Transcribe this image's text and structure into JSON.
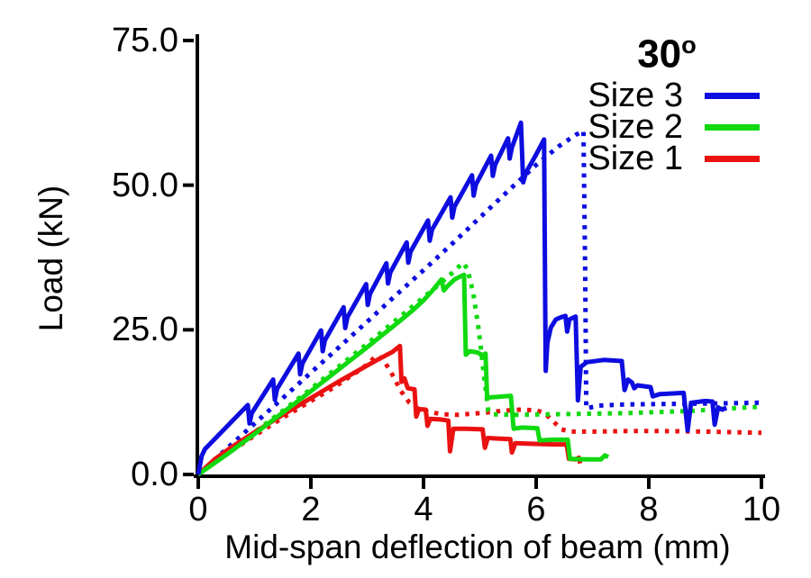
{
  "chart_data": {
    "type": "line",
    "title": "30",
    "title_sup": "o",
    "xlabel": "Mid-span deflection of beam (mm)",
    "ylabel": "Load (kN)",
    "xlim": [
      0,
      10
    ],
    "ylim": [
      0,
      75
    ],
    "grid": false,
    "legend_position": "upper-right",
    "xticks": [
      0,
      2,
      4,
      6,
      8,
      10
    ],
    "yticks": [
      0,
      25,
      50,
      75
    ],
    "xtick_labels": [
      "0",
      "2",
      "4",
      "6",
      "8",
      "10"
    ],
    "ytick_labels": [
      "0.0",
      "25.0",
      "50.0",
      "75.0"
    ],
    "axis_color": "#000000",
    "legend": {
      "items": [
        {
          "label": "Size 3",
          "color": "#0d0de0"
        },
        {
          "label": "Size 2",
          "color": "#10d910"
        },
        {
          "label": "Size 1",
          "color": "#ea1111"
        }
      ]
    },
    "series": [
      {
        "id": "size1-dotted",
        "name": "Size 1 (dotted)",
        "color": "#ea1111",
        "line": "dotted",
        "points": [
          [
            0,
            0
          ],
          [
            0.5,
            3.5
          ],
          [
            1,
            6.7
          ],
          [
            1.5,
            9.8
          ],
          [
            2,
            12.7
          ],
          [
            2.4,
            15
          ],
          [
            2.8,
            17.6
          ],
          [
            3,
            19
          ],
          [
            3.17,
            20.6
          ],
          [
            3.3,
            19.6
          ],
          [
            3.45,
            17.2
          ],
          [
            3.6,
            14.4
          ],
          [
            3.75,
            12.4
          ],
          [
            3.9,
            11.4
          ],
          [
            4.1,
            10.8
          ],
          [
            4.35,
            10.4
          ],
          [
            4.6,
            10.3
          ],
          [
            5,
            10.6
          ],
          [
            5.4,
            11
          ],
          [
            5.7,
            11.2
          ],
          [
            6,
            11.1
          ],
          [
            6.15,
            10.6
          ],
          [
            6.3,
            9.2
          ],
          [
            6.45,
            7.8
          ],
          [
            6.6,
            7.4
          ],
          [
            7,
            7.4
          ],
          [
            7.6,
            7.5
          ],
          [
            8.2,
            7.5
          ],
          [
            9,
            7.4
          ],
          [
            10,
            7.2
          ]
        ]
      },
      {
        "id": "size2-dotted",
        "name": "Size 2 (dotted)",
        "color": "#10d910",
        "line": "dotted",
        "points": [
          [
            0,
            0
          ],
          [
            0.5,
            3.6
          ],
          [
            1,
            7.3
          ],
          [
            1.5,
            11
          ],
          [
            2,
            14.8
          ],
          [
            2.5,
            18.7
          ],
          [
            3,
            22.6
          ],
          [
            3.5,
            26.6
          ],
          [
            4,
            30.6
          ],
          [
            4.3,
            33
          ],
          [
            4.55,
            35.2
          ],
          [
            4.7,
            36.6
          ],
          [
            4.78,
            35.5
          ],
          [
            4.88,
            31.5
          ],
          [
            4.98,
            25
          ],
          [
            5.08,
            16.5
          ],
          [
            5.15,
            11
          ],
          [
            5.22,
            10.4
          ],
          [
            5.6,
            10.3
          ],
          [
            6.2,
            10.4
          ],
          [
            7,
            10.5
          ],
          [
            7.6,
            10.6
          ],
          [
            8.2,
            10.8
          ],
          [
            8.8,
            11
          ],
          [
            9.4,
            11.4
          ],
          [
            10,
            11.7
          ]
        ]
      },
      {
        "id": "size3-dotted",
        "name": "Size 3 (dotted)",
        "color": "#0d0de0",
        "line": "dotted",
        "points": [
          [
            0,
            0
          ],
          [
            0.5,
            4.4
          ],
          [
            1,
            8.8
          ],
          [
            1.5,
            13.2
          ],
          [
            2,
            17.6
          ],
          [
            2.5,
            22
          ],
          [
            3,
            26.4
          ],
          [
            3.5,
            30.9
          ],
          [
            4,
            35.3
          ],
          [
            4.5,
            39.8
          ],
          [
            5,
            44.4
          ],
          [
            5.5,
            49
          ],
          [
            6,
            53.5
          ],
          [
            6.4,
            56.7
          ],
          [
            6.7,
            58.7
          ],
          [
            6.84,
            59.4
          ],
          [
            6.87,
            35
          ],
          [
            6.89,
            11.4
          ],
          [
            7.1,
            11.9
          ],
          [
            7.6,
            12.1
          ],
          [
            8.5,
            12.2
          ],
          [
            9.3,
            12.3
          ],
          [
            10,
            12.4
          ]
        ]
      },
      {
        "id": "size1-solid",
        "name": "Size 1",
        "color": "#ea1111",
        "line": "solid",
        "points": [
          [
            0,
            0
          ],
          [
            0.3,
            2.7
          ],
          [
            0.6,
            4.8
          ],
          [
            1,
            7.3
          ],
          [
            1.5,
            10.3
          ],
          [
            2,
            13.2
          ],
          [
            2.5,
            16.1
          ],
          [
            2.9,
            18.3
          ],
          [
            3.2,
            19.9
          ],
          [
            3.45,
            21.2
          ],
          [
            3.58,
            22.2
          ],
          [
            3.61,
            16
          ],
          [
            3.66,
            16.6
          ],
          [
            3.72,
            14.9
          ],
          [
            3.84,
            14.7
          ],
          [
            3.87,
            10
          ],
          [
            3.92,
            11.3
          ],
          [
            4.04,
            11.2
          ],
          [
            4.07,
            8.4
          ],
          [
            4.12,
            9.6
          ],
          [
            4.3,
            9.5
          ],
          [
            4.44,
            9.3
          ],
          [
            4.47,
            4
          ],
          [
            4.53,
            7.9
          ],
          [
            4.75,
            7.9
          ],
          [
            5.05,
            7.8
          ],
          [
            5.09,
            4.6
          ],
          [
            5.14,
            6.3
          ],
          [
            5.35,
            6.2
          ],
          [
            5.54,
            6.1
          ],
          [
            5.57,
            3.8
          ],
          [
            5.63,
            5.4
          ],
          [
            5.9,
            5.3
          ],
          [
            6.3,
            5.2
          ],
          [
            6.54,
            5.2
          ],
          [
            6.58,
            2.7
          ],
          [
            6.7,
            2.6
          ],
          [
            6.76,
            2.9
          ],
          [
            6.78,
            1.9
          ]
        ]
      },
      {
        "id": "size2-solid",
        "name": "Size 2",
        "color": "#10d910",
        "line": "solid",
        "points": [
          [
            0,
            0
          ],
          [
            0.5,
            3.4
          ],
          [
            1,
            7
          ],
          [
            1.5,
            10.7
          ],
          [
            2,
            14.4
          ],
          [
            2.5,
            18.2
          ],
          [
            3,
            22
          ],
          [
            3.5,
            25.9
          ],
          [
            3.8,
            28.3
          ],
          [
            4,
            30.1
          ],
          [
            4.15,
            31.7
          ],
          [
            4.25,
            32.9
          ],
          [
            4.32,
            33.7
          ],
          [
            4.36,
            31.8
          ],
          [
            4.42,
            32.5
          ],
          [
            4.55,
            33.7
          ],
          [
            4.65,
            34.2
          ],
          [
            4.72,
            34.5
          ],
          [
            4.75,
            20.7
          ],
          [
            4.82,
            21.3
          ],
          [
            4.95,
            21.1
          ],
          [
            5.05,
            20.6
          ],
          [
            5.1,
            20.9
          ],
          [
            5.13,
            13.3
          ],
          [
            5.3,
            13.4
          ],
          [
            5.55,
            13.6
          ],
          [
            5.6,
            7.9
          ],
          [
            5.75,
            8.1
          ],
          [
            6.02,
            8
          ],
          [
            6.06,
            5.9
          ],
          [
            6.3,
            6
          ],
          [
            6.56,
            6
          ],
          [
            6.6,
            2.7
          ],
          [
            6.9,
            2.6
          ],
          [
            7.15,
            2.6
          ],
          [
            7.22,
            3.3
          ],
          [
            7.28,
            3
          ]
        ]
      },
      {
        "id": "size3-solid",
        "name": "Size 3",
        "color": "#0d0de0",
        "line": "solid",
        "points": [
          [
            0,
            0
          ],
          [
            0.06,
            3.2
          ],
          [
            0.12,
            4.4
          ],
          [
            0.88,
            12
          ],
          [
            0.91,
            8.8
          ],
          [
            0.95,
            10.6
          ],
          [
            1.33,
            16.4
          ],
          [
            1.36,
            12.9
          ],
          [
            1.4,
            14.8
          ],
          [
            1.78,
            20.9
          ],
          [
            1.81,
            17.3
          ],
          [
            1.85,
            19.2
          ],
          [
            2.18,
            24.9
          ],
          [
            2.21,
            21.3
          ],
          [
            2.25,
            23.2
          ],
          [
            2.58,
            28.9
          ],
          [
            2.61,
            25.3
          ],
          [
            2.65,
            27.2
          ],
          [
            2.98,
            32.9
          ],
          [
            3.01,
            29.3
          ],
          [
            3.05,
            31.2
          ],
          [
            3.34,
            36.5
          ],
          [
            3.37,
            33
          ],
          [
            3.41,
            34.9
          ],
          [
            3.7,
            40.1
          ],
          [
            3.73,
            36.6
          ],
          [
            3.77,
            38.5
          ],
          [
            4.08,
            43.9
          ],
          [
            4.11,
            40.4
          ],
          [
            4.15,
            42.3
          ],
          [
            4.48,
            47.9
          ],
          [
            4.51,
            44.4
          ],
          [
            4.55,
            46.3
          ],
          [
            4.86,
            51.7
          ],
          [
            4.89,
            48.2
          ],
          [
            4.93,
            50.1
          ],
          [
            5.2,
            55.1
          ],
          [
            5.23,
            51.6
          ],
          [
            5.27,
            53.5
          ],
          [
            5.5,
            58.1
          ],
          [
            5.53,
            54.6
          ],
          [
            5.57,
            56.5
          ],
          [
            5.73,
            60.8
          ],
          [
            5.77,
            50.5
          ],
          [
            5.82,
            52.2
          ],
          [
            6,
            55.3
          ],
          [
            6.14,
            57.9
          ],
          [
            6.16,
            30
          ],
          [
            6.17,
            17.9
          ],
          [
            6.2,
            22.8
          ],
          [
            6.26,
            25.4
          ],
          [
            6.35,
            26.8
          ],
          [
            6.45,
            27.2
          ],
          [
            6.52,
            27.4
          ],
          [
            6.55,
            24.7
          ],
          [
            6.59,
            26.8
          ],
          [
            6.7,
            27.3
          ],
          [
            6.74,
            12.8
          ],
          [
            6.79,
            18.6
          ],
          [
            6.9,
            19.4
          ],
          [
            7.2,
            19.8
          ],
          [
            7.52,
            19.6
          ],
          [
            7.57,
            14.6
          ],
          [
            7.63,
            16.4
          ],
          [
            7.7,
            15.9
          ],
          [
            7.74,
            14.9
          ],
          [
            7.8,
            15.4
          ],
          [
            8.03,
            15.1
          ],
          [
            8.07,
            13.5
          ],
          [
            8.2,
            13.9
          ],
          [
            8.62,
            14.1
          ],
          [
            8.69,
            7.6
          ],
          [
            8.75,
            12.4
          ],
          [
            9,
            12.7
          ],
          [
            9.13,
            12.6
          ],
          [
            9.17,
            8.6
          ],
          [
            9.23,
            11.6
          ],
          [
            9.3,
            11.2
          ],
          [
            9.38,
            11.5
          ]
        ]
      }
    ]
  }
}
